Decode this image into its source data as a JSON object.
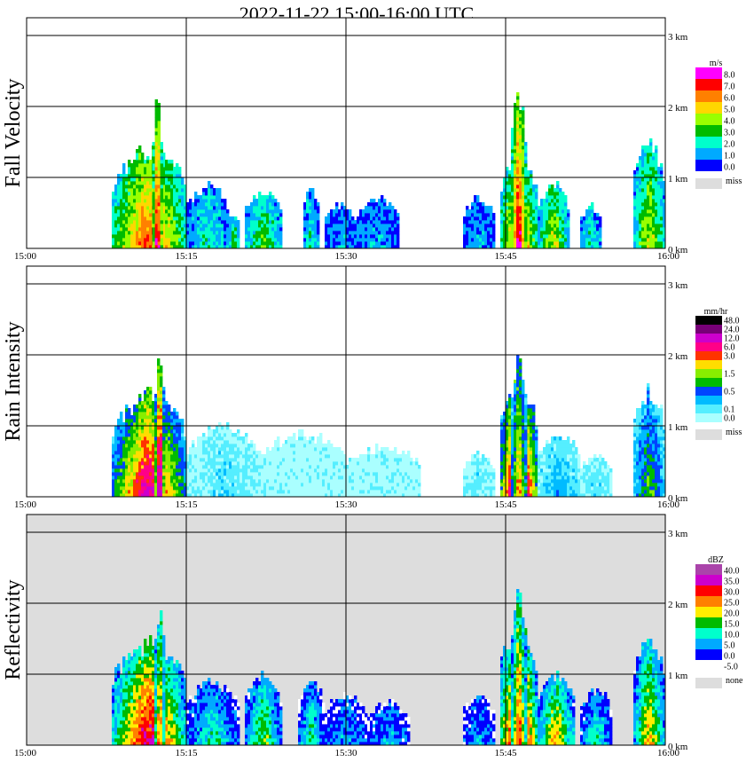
{
  "chart_data": {
    "type": "heatmap",
    "title": "2022-11-22   15:00-16:00 UTC",
    "x_ticks": [
      "15:00",
      "15:15",
      "15:30",
      "15:45",
      "16:00"
    ],
    "y_ticks": [
      "0 km",
      "1 km",
      "2 km",
      "3 km"
    ],
    "xlim": [
      "15:00",
      "16:00"
    ],
    "ylim_km": [
      0,
      3
    ],
    "grid": true,
    "legend_position": "right",
    "panels": [
      {
        "name": "Fall Velocity",
        "unit": "m/s",
        "background": "#ffffff",
        "levels": [
          {
            "label": "8.0",
            "color": "#ff00ff"
          },
          {
            "label": "7.0",
            "color": "#ff0000"
          },
          {
            "label": "6.0",
            "color": "#ff8000"
          },
          {
            "label": "5.0",
            "color": "#ffd700"
          },
          {
            "label": "4.0",
            "color": "#99ff00"
          },
          {
            "label": "3.0",
            "color": "#00bb00"
          },
          {
            "label": "2.0",
            "color": "#00ffcc"
          },
          {
            "label": "1.0",
            "color": "#00aaff"
          },
          {
            "label": "0.0",
            "color": "#0000ff"
          }
        ],
        "miss_label": "miss",
        "miss_color": "#dddddd",
        "blobs": [
          {
            "t": [
              8,
              15
            ],
            "top_km": 1.4,
            "core": 6
          },
          {
            "t": [
              11.8,
              12.8
            ],
            "top_km": 2.05,
            "core": 7
          },
          {
            "t": [
              15,
              19
            ],
            "top_km": 0.9,
            "core": 2
          },
          {
            "t": [
              19,
              20
            ],
            "top_km": 0.5,
            "core": 3
          },
          {
            "t": [
              20.5,
              24
            ],
            "top_km": 0.8,
            "core": 3
          },
          {
            "t": [
              26,
              27.5
            ],
            "top_km": 0.85,
            "core": 2
          },
          {
            "t": [
              28,
              31
            ],
            "top_km": 0.6,
            "core": 1
          },
          {
            "t": [
              31,
              35
            ],
            "top_km": 0.7,
            "core": 1
          },
          {
            "t": [
              41,
              44
            ],
            "top_km": 0.7,
            "core": 1
          },
          {
            "t": [
              44.5,
              48
            ],
            "top_km": 1.3,
            "core": 6
          },
          {
            "t": [
              45.5,
              47
            ],
            "top_km": 2.2,
            "core": 7
          },
          {
            "t": [
              48,
              51
            ],
            "top_km": 0.9,
            "core": 4
          },
          {
            "t": [
              52,
              54
            ],
            "top_km": 0.6,
            "core": 2
          },
          {
            "t": [
              57,
              60
            ],
            "top_km": 1.5,
            "core": 4
          }
        ]
      },
      {
        "name": "Rain Intensity",
        "unit": "mm/hr",
        "background": "#ffffff",
        "levels": [
          {
            "label": "48.0",
            "color": "#000000"
          },
          {
            "label": "24.0",
            "color": "#770077"
          },
          {
            "label": "12.0",
            "color": "#cc00cc"
          },
          {
            "label": "6.0",
            "color": "#ff0088"
          },
          {
            "label": "3.0",
            "color": "#ff3300"
          },
          {
            "label": "",
            "color": "#ffdd00"
          },
          {
            "label": "1.5",
            "color": "#88ee00"
          },
          {
            "label": "",
            "color": "#00bb00"
          },
          {
            "label": "0.5",
            "color": "#0044ff"
          },
          {
            "label": "",
            "color": "#00bbff"
          },
          {
            "label": "0.1",
            "color": "#55eeff"
          },
          {
            "label": "0.0",
            "color": "#aaffff"
          }
        ],
        "miss_label": "miss",
        "miss_color": "#dddddd",
        "blobs": [
          {
            "t": [
              8,
              15
            ],
            "top_km": 1.45,
            "core": 8
          },
          {
            "t": [
              12,
              13
            ],
            "top_km": 1.9,
            "core": 9
          },
          {
            "t": [
              15,
              22
            ],
            "top_km": 1.0,
            "core": 1
          },
          {
            "t": [
              22,
              30
            ],
            "top_km": 0.9,
            "core": 0
          },
          {
            "t": [
              30,
              37
            ],
            "top_km": 0.7,
            "core": 0
          },
          {
            "t": [
              41,
              44
            ],
            "top_km": 0.6,
            "core": 1
          },
          {
            "t": [
              44.5,
              48
            ],
            "top_km": 1.6,
            "core": 10
          },
          {
            "t": [
              45.5,
              47
            ],
            "top_km": 2.0,
            "core": 6
          },
          {
            "t": [
              48,
              52
            ],
            "top_km": 0.9,
            "core": 2
          },
          {
            "t": [
              52,
              55
            ],
            "top_km": 0.6,
            "core": 1
          },
          {
            "t": [
              57,
              60
            ],
            "top_km": 1.5,
            "core": 4
          }
        ]
      },
      {
        "name": "Reflectivity",
        "unit": "dBZ",
        "background": "#dddddd",
        "levels": [
          {
            "label": "40.0",
            "color": "#aa44aa"
          },
          {
            "label": "35.0",
            "color": "#cc00cc"
          },
          {
            "label": "30.0",
            "color": "#ff0000"
          },
          {
            "label": "25.0",
            "color": "#ff8000"
          },
          {
            "label": "20.0",
            "color": "#ffee00"
          },
          {
            "label": "15.0",
            "color": "#00bb00"
          },
          {
            "label": "10.0",
            "color": "#00ffcc"
          },
          {
            "label": "5.0",
            "color": "#00aaff"
          },
          {
            "label": "0.0",
            "color": "#0000ff"
          },
          {
            "label": "-5.0",
            "color": "#ffffff"
          }
        ],
        "miss_label": "none",
        "miss_color": "#dddddd",
        "blobs": [
          {
            "t": [
              8,
              15
            ],
            "top_km": 1.45,
            "core": 7
          },
          {
            "t": [
              12,
              13
            ],
            "top_km": 2.0,
            "core": 6
          },
          {
            "t": [
              15,
              20
            ],
            "top_km": 0.9,
            "core": 3
          },
          {
            "t": [
              20.5,
              24
            ],
            "top_km": 1.0,
            "core": 4
          },
          {
            "t": [
              25.5,
              28
            ],
            "top_km": 0.9,
            "core": 3
          },
          {
            "t": [
              28,
              32
            ],
            "top_km": 0.7,
            "core": 2
          },
          {
            "t": [
              32,
              36
            ],
            "top_km": 0.6,
            "core": 2
          },
          {
            "t": [
              41,
              44
            ],
            "top_km": 0.7,
            "core": 2
          },
          {
            "t": [
              44.5,
              48
            ],
            "top_km": 1.7,
            "core": 8
          },
          {
            "t": [
              45.5,
              47
            ],
            "top_km": 2.2,
            "core": 6
          },
          {
            "t": [
              48,
              51.5
            ],
            "top_km": 1.0,
            "core": 5
          },
          {
            "t": [
              52,
              55
            ],
            "top_km": 0.8,
            "core": 3
          },
          {
            "t": [
              57,
              60
            ],
            "top_km": 1.5,
            "core": 5
          }
        ]
      }
    ]
  }
}
